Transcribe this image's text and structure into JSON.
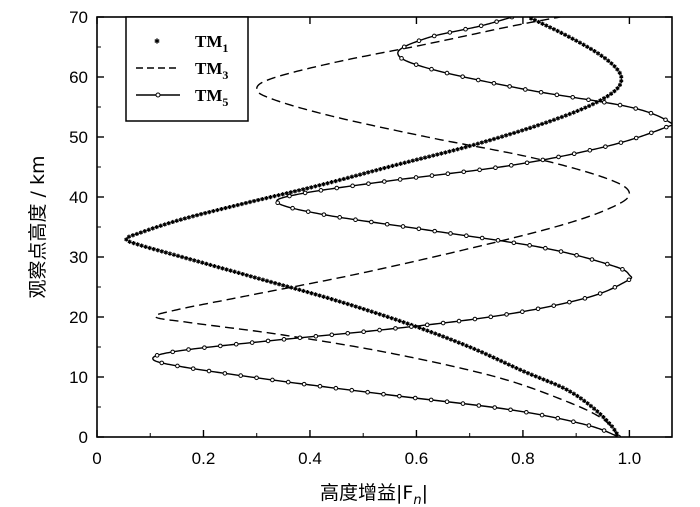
{
  "chart_data": {
    "type": "line",
    "xlabel": "高度增益|F",
    "xlabel_sub": "n",
    "xlabel_suffix": "|",
    "ylabel": "观察点高度 / km",
    "xlim": [
      0,
      1.08
    ],
    "ylim": [
      0,
      70
    ],
    "xticks": [
      "0",
      "0.2",
      "0.4",
      "0.6",
      "0.8",
      "1.0"
    ],
    "yticks": [
      "0",
      "10",
      "20",
      "30",
      "40",
      "50",
      "60",
      "70"
    ],
    "grid": false,
    "legend_position": "top-left",
    "series": [
      {
        "name": "TM",
        "name_sub": "1",
        "style": "asterisk",
        "points": [
          [
            0.98,
            0
          ],
          [
            0.965,
            2
          ],
          [
            0.93,
            5
          ],
          [
            0.88,
            8
          ],
          [
            0.8,
            11
          ],
          [
            0.7,
            15
          ],
          [
            0.58,
            19
          ],
          [
            0.44,
            23
          ],
          [
            0.3,
            26.5
          ],
          [
            0.18,
            29.5
          ],
          [
            0.08,
            32
          ],
          [
            0.055,
            33
          ],
          [
            0.08,
            34
          ],
          [
            0.16,
            36.3
          ],
          [
            0.28,
            39
          ],
          [
            0.42,
            42
          ],
          [
            0.56,
            45.3
          ],
          [
            0.7,
            48.5
          ],
          [
            0.83,
            52
          ],
          [
            0.92,
            55
          ],
          [
            0.97,
            57.5
          ],
          [
            0.985,
            59.5
          ],
          [
            0.975,
            61.5
          ],
          [
            0.94,
            64
          ],
          [
            0.88,
            67
          ],
          [
            0.81,
            70
          ]
        ]
      },
      {
        "name": "TM",
        "name_sub": "3",
        "style": "dashed",
        "points": [
          [
            0.98,
            0
          ],
          [
            0.95,
            3
          ],
          [
            0.88,
            6
          ],
          [
            0.75,
            10
          ],
          [
            0.55,
            14
          ],
          [
            0.35,
            17
          ],
          [
            0.18,
            19
          ],
          [
            0.11,
            20
          ],
          [
            0.15,
            21.2
          ],
          [
            0.28,
            23.5
          ],
          [
            0.48,
            27
          ],
          [
            0.68,
            31
          ],
          [
            0.86,
            35
          ],
          [
            0.96,
            38
          ],
          [
            1.0,
            40.5
          ],
          [
            0.96,
            43
          ],
          [
            0.82,
            46.5
          ],
          [
            0.62,
            50
          ],
          [
            0.44,
            53.5
          ],
          [
            0.33,
            56.3
          ],
          [
            0.3,
            58
          ],
          [
            0.33,
            59.8
          ],
          [
            0.45,
            62.5
          ],
          [
            0.62,
            65.5
          ],
          [
            0.78,
            68.5
          ],
          [
            0.87,
            70
          ]
        ]
      },
      {
        "name": "TM",
        "name_sub": "5",
        "style": "solid-circle",
        "points": [
          [
            0.98,
            0
          ],
          [
            0.92,
            2
          ],
          [
            0.78,
            4.5
          ],
          [
            0.55,
            7
          ],
          [
            0.33,
            9.5
          ],
          [
            0.16,
            11.7
          ],
          [
            0.105,
            13
          ],
          [
            0.15,
            14.3
          ],
          [
            0.32,
            16
          ],
          [
            0.55,
            18
          ],
          [
            0.76,
            20.3
          ],
          [
            0.92,
            23.2
          ],
          [
            0.995,
            26
          ],
          [
            1.0,
            27
          ],
          [
            0.97,
            28.5
          ],
          [
            0.84,
            31.5
          ],
          [
            0.62,
            34.5
          ],
          [
            0.43,
            37
          ],
          [
            0.34,
            39
          ],
          [
            0.38,
            40.5
          ],
          [
            0.55,
            42.7
          ],
          [
            0.78,
            45.3
          ],
          [
            0.96,
            48.5
          ],
          [
            1.065,
            51.5
          ],
          [
            1.075,
            52.5
          ],
          [
            1.0,
            55
          ],
          [
            0.8,
            58
          ],
          [
            0.62,
            61.5
          ],
          [
            0.565,
            64
          ],
          [
            0.62,
            66.5
          ],
          [
            0.72,
            68.5
          ],
          [
            0.78,
            70
          ]
        ]
      }
    ]
  }
}
